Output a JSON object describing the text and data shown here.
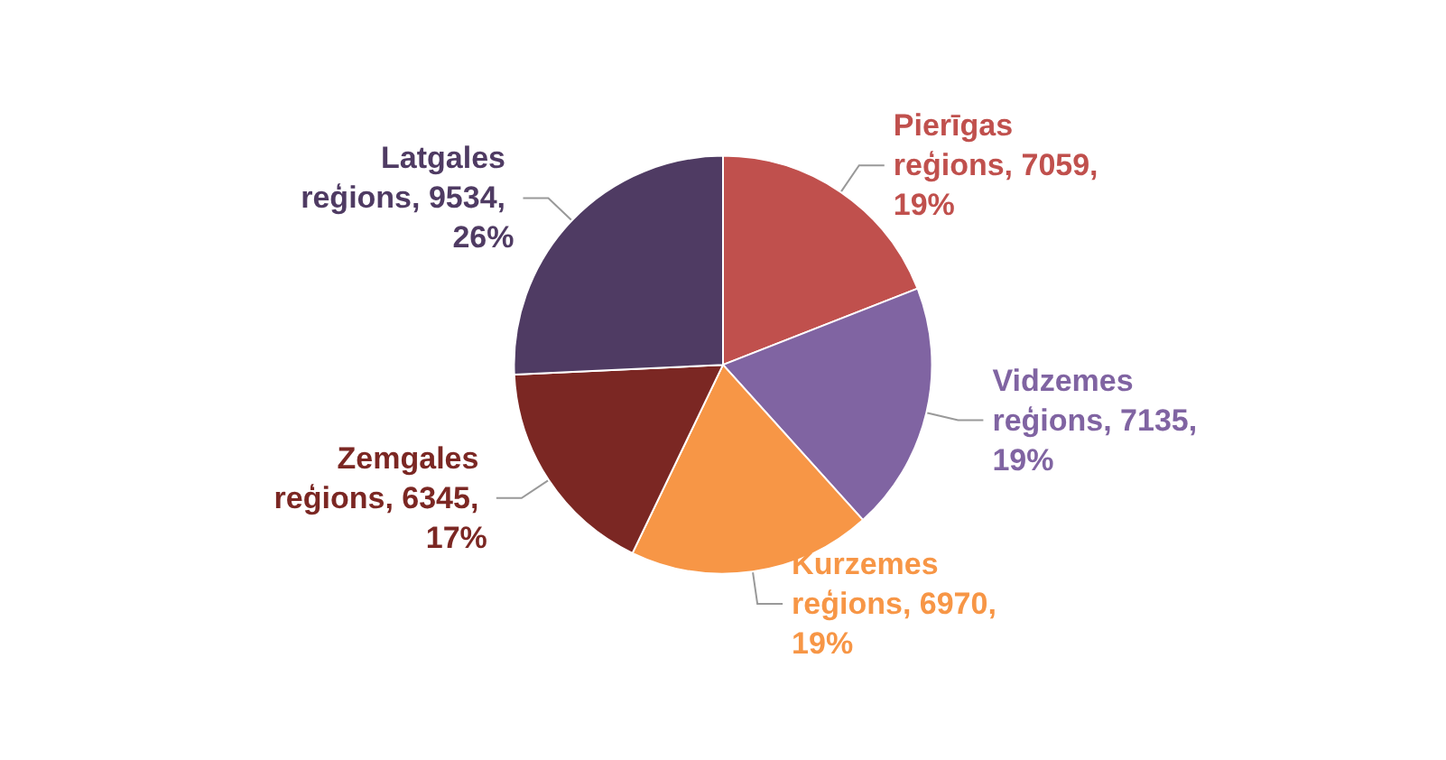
{
  "chart_data": {
    "type": "pie",
    "categories": [
      "Pierīgas reģions, 7059, 19%",
      "Vidzemes reģions, 7135, 19%",
      "Kurzemes reģions, 6970, 19%",
      "Zemgales reģions, 6345, 17%",
      "Latgales reģions, 9534, 26%"
    ],
    "values": [
      7059,
      7135,
      6970,
      6345,
      9534
    ],
    "colors": [
      "#c0504d",
      "#8064a2",
      "#f79646",
      "#7b2723",
      "#4f3b63"
    ],
    "legend": false
  }
}
